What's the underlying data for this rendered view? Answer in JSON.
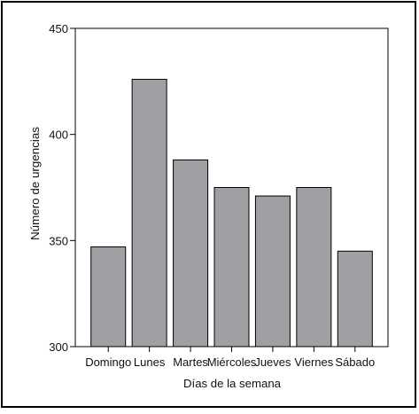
{
  "chart_data": {
    "type": "bar",
    "x_label": "Días de la semana",
    "y_label": "Número de urgencias",
    "categories": [
      "Domingo",
      "Lunes",
      "Martes",
      "Miércoles",
      "Jueves",
      "Viernes",
      "Sábado"
    ],
    "values": [
      347,
      426,
      388,
      375,
      371,
      375,
      345
    ],
    "color": "#a09fa3",
    "ylim": [
      300,
      450
    ],
    "yticks": [
      300,
      350,
      400,
      450
    ],
    "grid": false
  }
}
